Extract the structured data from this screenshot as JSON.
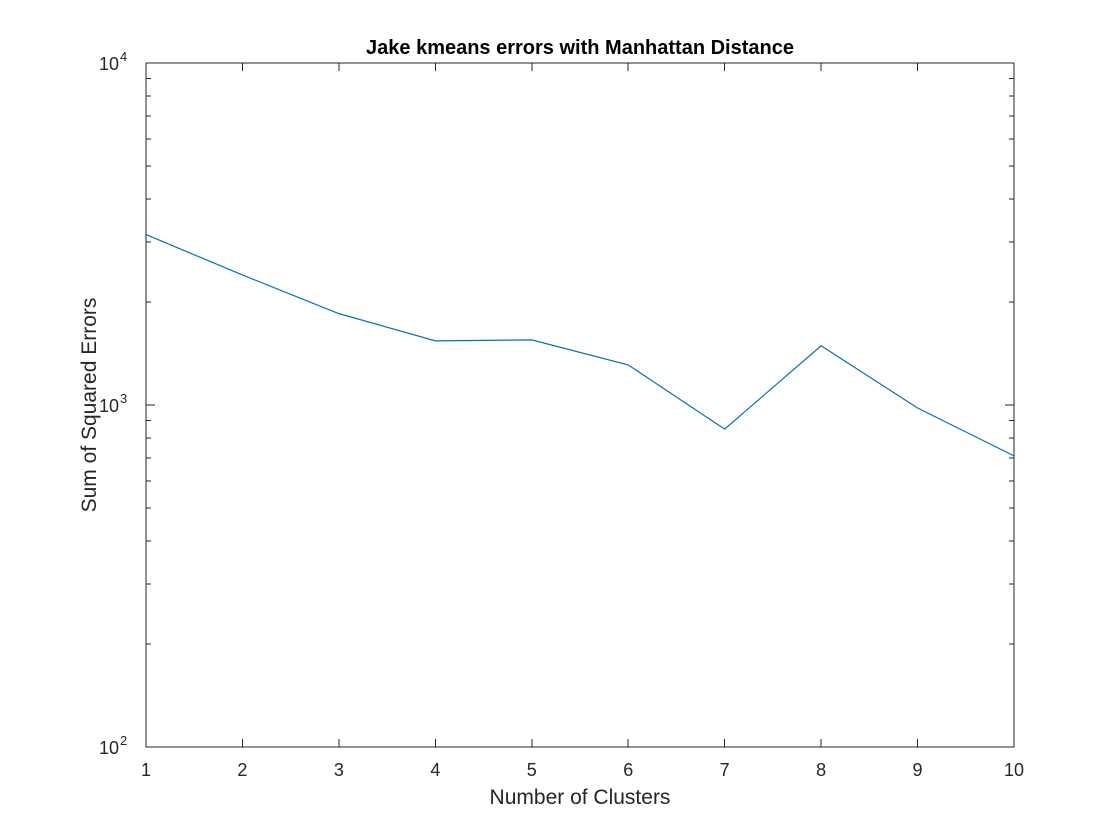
{
  "chart_data": {
    "type": "line",
    "title": "Jake kmeans errors with Manhattan Distance",
    "xlabel": "Number of Clusters",
    "ylabel": "Sum of Squared Errors",
    "xlim": [
      1,
      10
    ],
    "ylim": [
      100,
      10000
    ],
    "yscale": "log",
    "grid": false,
    "x": [
      1,
      2,
      3,
      4,
      5,
      6,
      7,
      8,
      9,
      10
    ],
    "xticks": [
      "1",
      "2",
      "3",
      "4",
      "5",
      "6",
      "7",
      "8",
      "9",
      "10"
    ],
    "yticks": [
      {
        "base": "10",
        "exp": "2",
        "value": 100
      },
      {
        "base": "10",
        "exp": "3",
        "value": 1000
      },
      {
        "base": "10",
        "exp": "4",
        "value": 10000
      }
    ],
    "series": [
      {
        "color": "#0072bd",
        "values": [
          3150,
          2400,
          1850,
          1540,
          1550,
          1310,
          850,
          1490,
          980,
          710
        ]
      }
    ]
  }
}
